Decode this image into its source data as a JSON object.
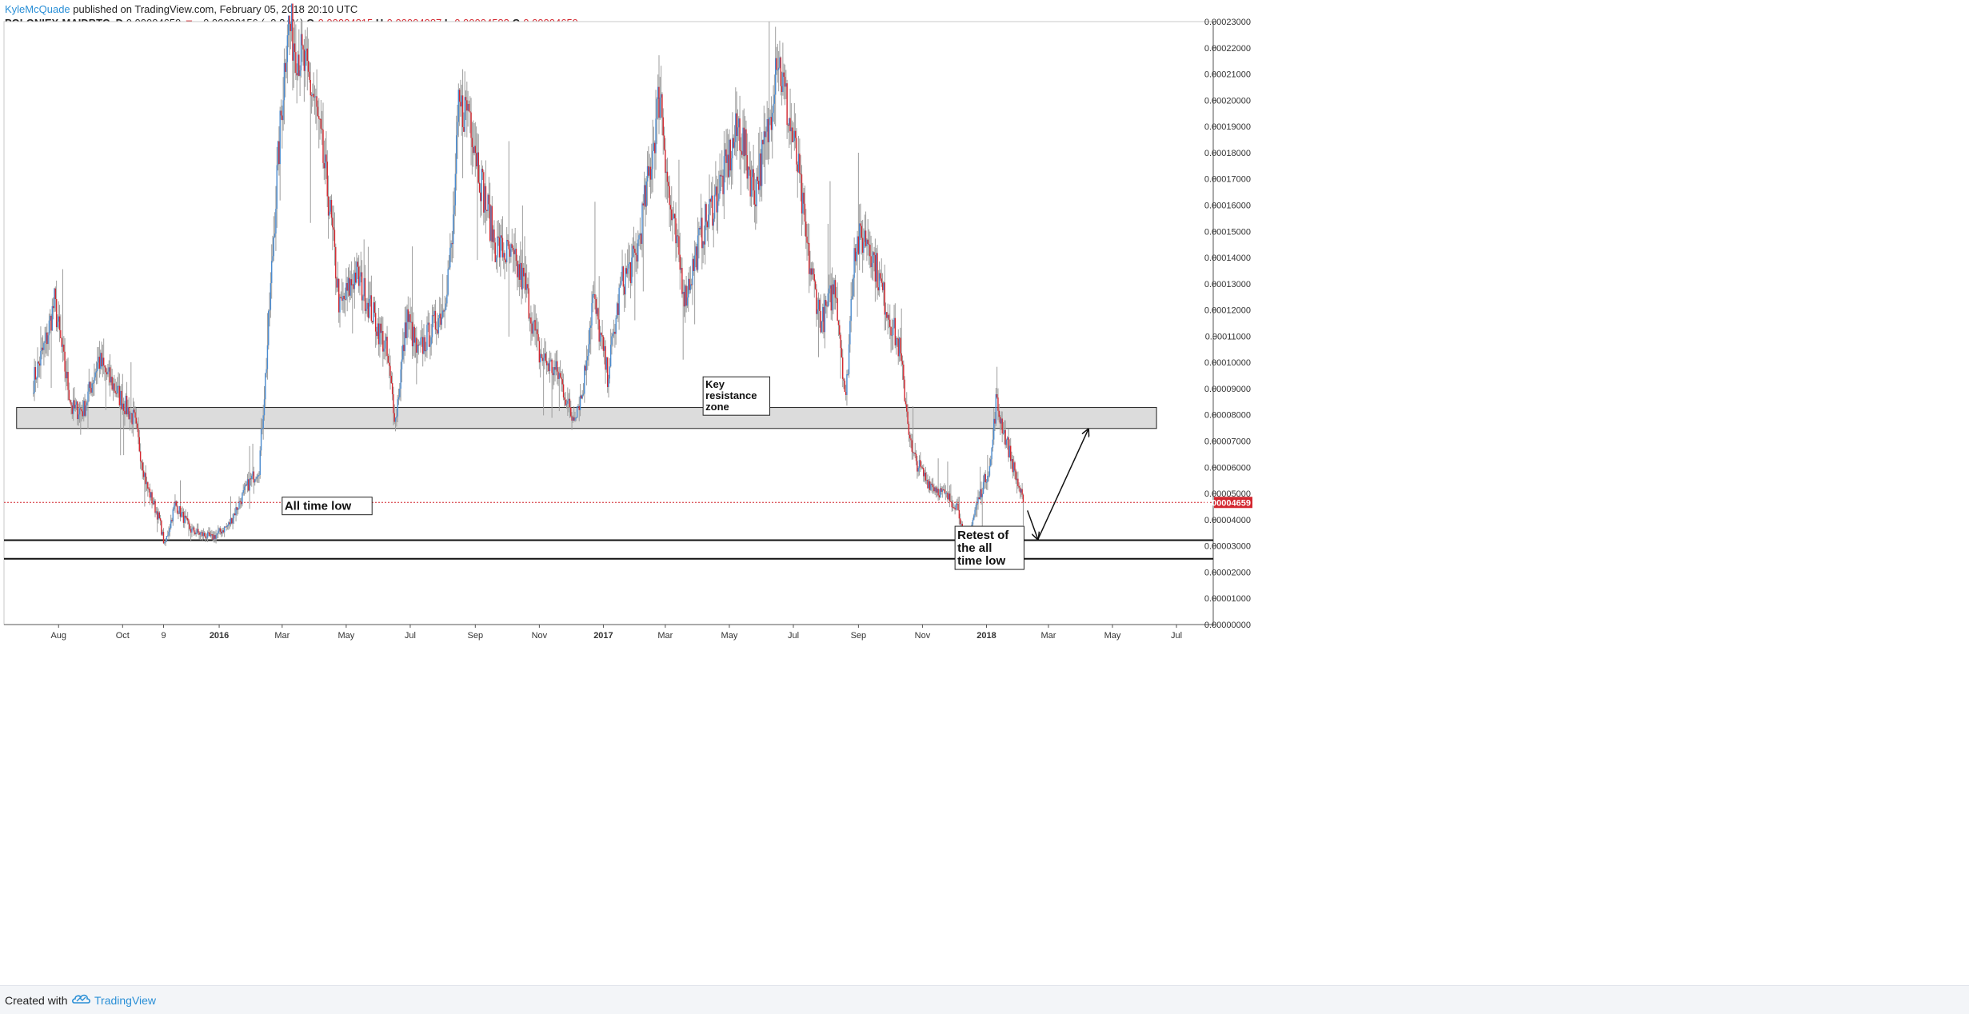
{
  "header": {
    "publisher": "KyleMcQuade",
    "published_text": "published on TradingView.com, February 05, 2018 20:10 UTC",
    "symbol": "POLONIEX:MAIDBTC, D",
    "last": "0.00004659",
    "change_arrow": "▼",
    "change": "−0.00000156 (−3.24%)",
    "o_label": "O:",
    "o_value": "0.00004815",
    "h_label": "H:",
    "h_value": "0.00004987",
    "l_label": "L:",
    "l_value": "0.00004583",
    "c_label": "C:",
    "c_value": "0.00004659"
  },
  "footer": {
    "created_with": "Created with",
    "brand": "TradingView",
    "logo_icon": "tradingview-cloud-icon"
  },
  "colors": {
    "up": "#4a8bd0",
    "down": "#d3272f",
    "wick": "#9e9e9e",
    "zone_fill": "#dcdcdc",
    "price_line": "#d3272f",
    "axis_text": "#333333"
  },
  "chart_data": {
    "type": "candlestick",
    "y_scale": "linear",
    "ylim": [
      0,
      0.00023
    ],
    "y_ticks": [
      "0.00000000",
      "0.00001000",
      "0.00002000",
      "0.00003000",
      "0.00004000",
      "0.00005000",
      "0.00006000",
      "0.00007000",
      "0.00008000",
      "0.00009000",
      "0.00010000",
      "0.00011000",
      "0.00012000",
      "0.00013000",
      "0.00014000",
      "0.00015000",
      "0.00016000",
      "0.00017000",
      "0.00018000",
      "0.00019000",
      "0.00020000",
      "0.00021000",
      "0.00022000",
      "0.00023000"
    ],
    "x_ticks": [
      {
        "label": "Aug",
        "date": "2015-08-01"
      },
      {
        "label": "Oct",
        "date": "2015-10-01"
      },
      {
        "label": "9",
        "date": "2015-11-09"
      },
      {
        "label": "2016",
        "date": "2016-01-01",
        "bold": true
      },
      {
        "label": "Mar",
        "date": "2016-03-01"
      },
      {
        "label": "May",
        "date": "2016-05-01"
      },
      {
        "label": "Jul",
        "date": "2016-07-01"
      },
      {
        "label": "Sep",
        "date": "2016-09-01"
      },
      {
        "label": "Nov",
        "date": "2016-11-01"
      },
      {
        "label": "2017",
        "date": "2017-01-01",
        "bold": true
      },
      {
        "label": "Mar",
        "date": "2017-03-01"
      },
      {
        "label": "May",
        "date": "2017-05-01"
      },
      {
        "label": "Jul",
        "date": "2017-07-01"
      },
      {
        "label": "Sep",
        "date": "2017-09-01"
      },
      {
        "label": "Nov",
        "date": "2017-11-01"
      },
      {
        "label": "2018",
        "date": "2018-01-01",
        "bold": true
      },
      {
        "label": "Mar",
        "date": "2018-03-01"
      },
      {
        "label": "May",
        "date": "2018-05-01"
      },
      {
        "label": "Jul",
        "date": "2018-07-01"
      }
    ],
    "x_range": [
      "2015-06-10",
      "2018-08-05"
    ],
    "series_start": "2015-07-08",
    "series_end": "2018-02-05",
    "price_path": [
      [
        "2015-07-08",
        9.3e-05
      ],
      [
        "2015-07-20",
        0.000108
      ],
      [
        "2015-07-28",
        0.000123
      ],
      [
        "2015-08-06",
        0.0001
      ],
      [
        "2015-08-14",
        8.2e-05
      ],
      [
        "2015-08-25",
        8.2e-05
      ],
      [
        "2015-09-08",
        0.000101
      ],
      [
        "2015-09-28",
        8.7e-05
      ],
      [
        "2015-10-12",
        7.8e-05
      ],
      [
        "2015-10-24",
        5.3e-05
      ],
      [
        "2015-11-05",
        4e-05
      ],
      [
        "2015-11-10",
        3e-05
      ],
      [
        "2015-11-20",
        4.6e-05
      ],
      [
        "2015-12-05",
        3.6e-05
      ],
      [
        "2015-12-25",
        3.3e-05
      ],
      [
        "2016-01-10",
        3.8e-05
      ],
      [
        "2016-01-28",
        5.3e-05
      ],
      [
        "2016-02-08",
        6e-05
      ],
      [
        "2016-02-15",
        0.0001
      ],
      [
        "2016-02-25",
        0.00017
      ],
      [
        "2016-03-06",
        0.00023
      ],
      [
        "2016-03-20",
        0.000215
      ],
      [
        "2016-04-01",
        0.0002
      ],
      [
        "2016-04-15",
        0.00016
      ],
      [
        "2016-04-25",
        0.00012
      ],
      [
        "2016-05-10",
        0.000134
      ],
      [
        "2016-05-20",
        0.000125
      ],
      [
        "2016-06-08",
        0.000105
      ],
      [
        "2016-06-17",
        7.8e-05
      ],
      [
        "2016-06-28",
        0.000118
      ],
      [
        "2016-07-08",
        0.000103
      ],
      [
        "2016-07-22",
        0.000113
      ],
      [
        "2016-08-01",
        0.00012
      ],
      [
        "2016-08-10",
        0.000145
      ],
      [
        "2016-08-16",
        0.000195
      ],
      [
        "2016-08-26",
        0.000198
      ],
      [
        "2016-09-06",
        0.00017
      ],
      [
        "2016-09-20",
        0.000145
      ],
      [
        "2016-10-05",
        0.00014
      ],
      [
        "2016-10-18",
        0.00013
      ],
      [
        "2016-11-01",
        0.000103
      ],
      [
        "2016-11-20",
        9.5e-05
      ],
      [
        "2016-12-02",
        7.9e-05
      ],
      [
        "2016-12-12",
        8.8e-05
      ],
      [
        "2016-12-22",
        0.000125
      ],
      [
        "2017-01-05",
        9.5e-05
      ],
      [
        "2017-01-18",
        0.00013
      ],
      [
        "2017-02-01",
        0.00014
      ],
      [
        "2017-02-15",
        0.000175
      ],
      [
        "2017-02-24",
        0.000205
      ],
      [
        "2017-03-05",
        0.00016
      ],
      [
        "2017-03-20",
        0.000125
      ],
      [
        "2017-04-05",
        0.00015
      ],
      [
        "2017-04-25",
        0.00017
      ],
      [
        "2017-05-10",
        0.00019
      ],
      [
        "2017-05-25",
        0.000165
      ],
      [
        "2017-06-08",
        0.00019
      ],
      [
        "2017-06-15",
        0.00022
      ],
      [
        "2017-06-28",
        0.00019
      ],
      [
        "2017-07-05",
        0.000175
      ],
      [
        "2017-07-15",
        0.00014
      ],
      [
        "2017-07-28",
        0.000115
      ],
      [
        "2017-08-10",
        0.00013
      ],
      [
        "2017-08-20",
        8.5e-05
      ],
      [
        "2017-08-28",
        0.000145
      ],
      [
        "2017-09-10",
        0.000148
      ],
      [
        "2017-09-25",
        0.000125
      ],
      [
        "2017-10-10",
        0.000105
      ],
      [
        "2017-10-22",
        6.5e-05
      ],
      [
        "2017-11-05",
        5.5e-05
      ],
      [
        "2017-11-20",
        5e-05
      ],
      [
        "2017-12-05",
        4.5e-05
      ],
      [
        "2017-12-12",
        2.8e-05
      ],
      [
        "2017-12-22",
        4.5e-05
      ],
      [
        "2018-01-05",
        6.2e-05
      ],
      [
        "2018-01-10",
        8.5e-05
      ],
      [
        "2018-01-20",
        7e-05
      ],
      [
        "2018-01-30",
        5.5e-05
      ],
      [
        "2018-02-05",
        4.659e-05
      ]
    ],
    "last_price": "0.00004659",
    "annotations": {
      "zone": {
        "y_top": 8.28e-05,
        "y_bottom": 7.48e-05,
        "x_start": "2015-06-22",
        "x_end": "2018-06-12"
      },
      "zone_label": {
        "text": [
          "Key",
          "resistance",
          "zone"
        ],
        "date": "2017-04-06",
        "y": 9.45e-05
      },
      "atl_label": {
        "text": [
          "All time low"
        ],
        "date": "2016-03-01",
        "y": 4.86e-05
      },
      "retest_label": {
        "text": [
          "Retest of",
          "the all",
          "time low"
        ],
        "date": "2017-12-02",
        "y": 3.75e-05
      },
      "hline_1": 3.22e-05,
      "hline_2": 2.51e-05,
      "arrows": [
        {
          "from": [
            "2018-02-09",
            4.35e-05
          ],
          "to": [
            "2018-02-19",
            3.25e-05
          ]
        },
        {
          "from": [
            "2018-02-19",
            3.25e-05
          ],
          "to": [
            "2018-04-08",
            7.45e-05
          ]
        }
      ]
    }
  }
}
